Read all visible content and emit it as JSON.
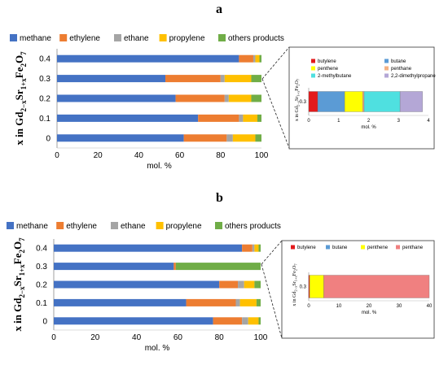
{
  "panels": [
    {
      "letter": "a"
    },
    {
      "letter": "b"
    }
  ],
  "chart_data": [
    {
      "type": "bar",
      "orientation": "horizontal",
      "stacked": true,
      "panel": "a",
      "categories": [
        "0",
        "0.1",
        "0.2",
        "0.3",
        "0.4"
      ],
      "ylabel": "x in Gd2−xSr1+xFe2O7",
      "xlabel": "mol. %",
      "xlim": [
        0,
        100
      ],
      "xticks": [
        "0",
        "20",
        "40",
        "60",
        "80",
        "100"
      ],
      "legend_position": "top",
      "series": [
        {
          "name": "methane",
          "color": "#4472C4",
          "values": [
            62,
            69,
            58,
            53,
            89
          ]
        },
        {
          "name": "ethylene",
          "color": "#ED7D31",
          "values": [
            21,
            20,
            24,
            27,
            7
          ]
        },
        {
          "name": "ethane",
          "color": "#A5A5A5",
          "values": [
            3,
            2,
            2,
            2,
            1
          ]
        },
        {
          "name": "propylene",
          "color": "#FFC000",
          "values": [
            11,
            7,
            11,
            13,
            2
          ]
        },
        {
          "name": "others products",
          "color": "#70AD47",
          "values": [
            3,
            2,
            5,
            5,
            1
          ]
        }
      ]
    },
    {
      "type": "bar",
      "orientation": "horizontal",
      "stacked": true,
      "panel": "a-inset",
      "categories": [
        "0.3"
      ],
      "ylabel": "x in Gd2−xSr1+xFe2O7",
      "xlabel": "mol. %",
      "xlim": [
        0,
        4
      ],
      "xticks": [
        "0",
        "1",
        "2",
        "3",
        "4"
      ],
      "legend_columns": 2,
      "series": [
        {
          "name": "butylene",
          "color": "#E31A1C",
          "values": [
            0.3
          ]
        },
        {
          "name": "butane",
          "color": "#5B9BD5",
          "values": [
            0.9
          ]
        },
        {
          "name": "penthene",
          "color": "#FFFF00",
          "values": [
            0.6
          ]
        },
        {
          "name": "penthane",
          "color": "#F4B183",
          "values": [
            0.05
          ]
        },
        {
          "name": "2-methylbutane",
          "color": "#4FE0E0",
          "values": [
            1.2
          ]
        },
        {
          "name": "2,2-dimethylpropane",
          "color": "#B4A7D6",
          "values": [
            0.75
          ]
        }
      ]
    },
    {
      "type": "bar",
      "orientation": "horizontal",
      "stacked": true,
      "panel": "b",
      "categories": [
        "0",
        "0.1",
        "0.2",
        "0.3",
        "0.4"
      ],
      "ylabel": "x in Gd2−xSr1+xFe2O7",
      "xlabel": "mol. %",
      "xlim": [
        0,
        100
      ],
      "xticks": [
        "0",
        "20",
        "40",
        "60",
        "80",
        "100"
      ],
      "legend_position": "top",
      "series": [
        {
          "name": "methane",
          "color": "#4472C4",
          "values": [
            77,
            64,
            80,
            58,
            91
          ]
        },
        {
          "name": "ethylene",
          "color": "#ED7D31",
          "values": [
            14,
            24,
            9,
            1,
            5
          ]
        },
        {
          "name": "ethane",
          "color": "#A5A5A5",
          "values": [
            3,
            2,
            3,
            0,
            1
          ]
        },
        {
          "name": "propylene",
          "color": "#FFC000",
          "values": [
            5,
            8,
            5,
            0,
            2
          ]
        },
        {
          "name": "others products",
          "color": "#70AD47",
          "values": [
            1,
            2,
            3,
            41,
            1
          ]
        }
      ]
    },
    {
      "type": "bar",
      "orientation": "horizontal",
      "stacked": true,
      "panel": "b-inset",
      "categories": [
        "0.3"
      ],
      "ylabel": "x in Gd2−xSr1+xFe2O7",
      "xlabel": "mol. %",
      "xlim": [
        0,
        40
      ],
      "xticks": [
        "0",
        "10",
        "20",
        "30",
        "40"
      ],
      "legend_columns": 4,
      "series": [
        {
          "name": "butylene",
          "color": "#E31A1C",
          "values": [
            0.3
          ]
        },
        {
          "name": "butane",
          "color": "#5B9BD5",
          "values": [
            0
          ]
        },
        {
          "name": "penthene",
          "color": "#FFFF00",
          "values": [
            4.7
          ]
        },
        {
          "name": "penthane",
          "color": "#F08080",
          "values": [
            35
          ]
        }
      ]
    }
  ]
}
